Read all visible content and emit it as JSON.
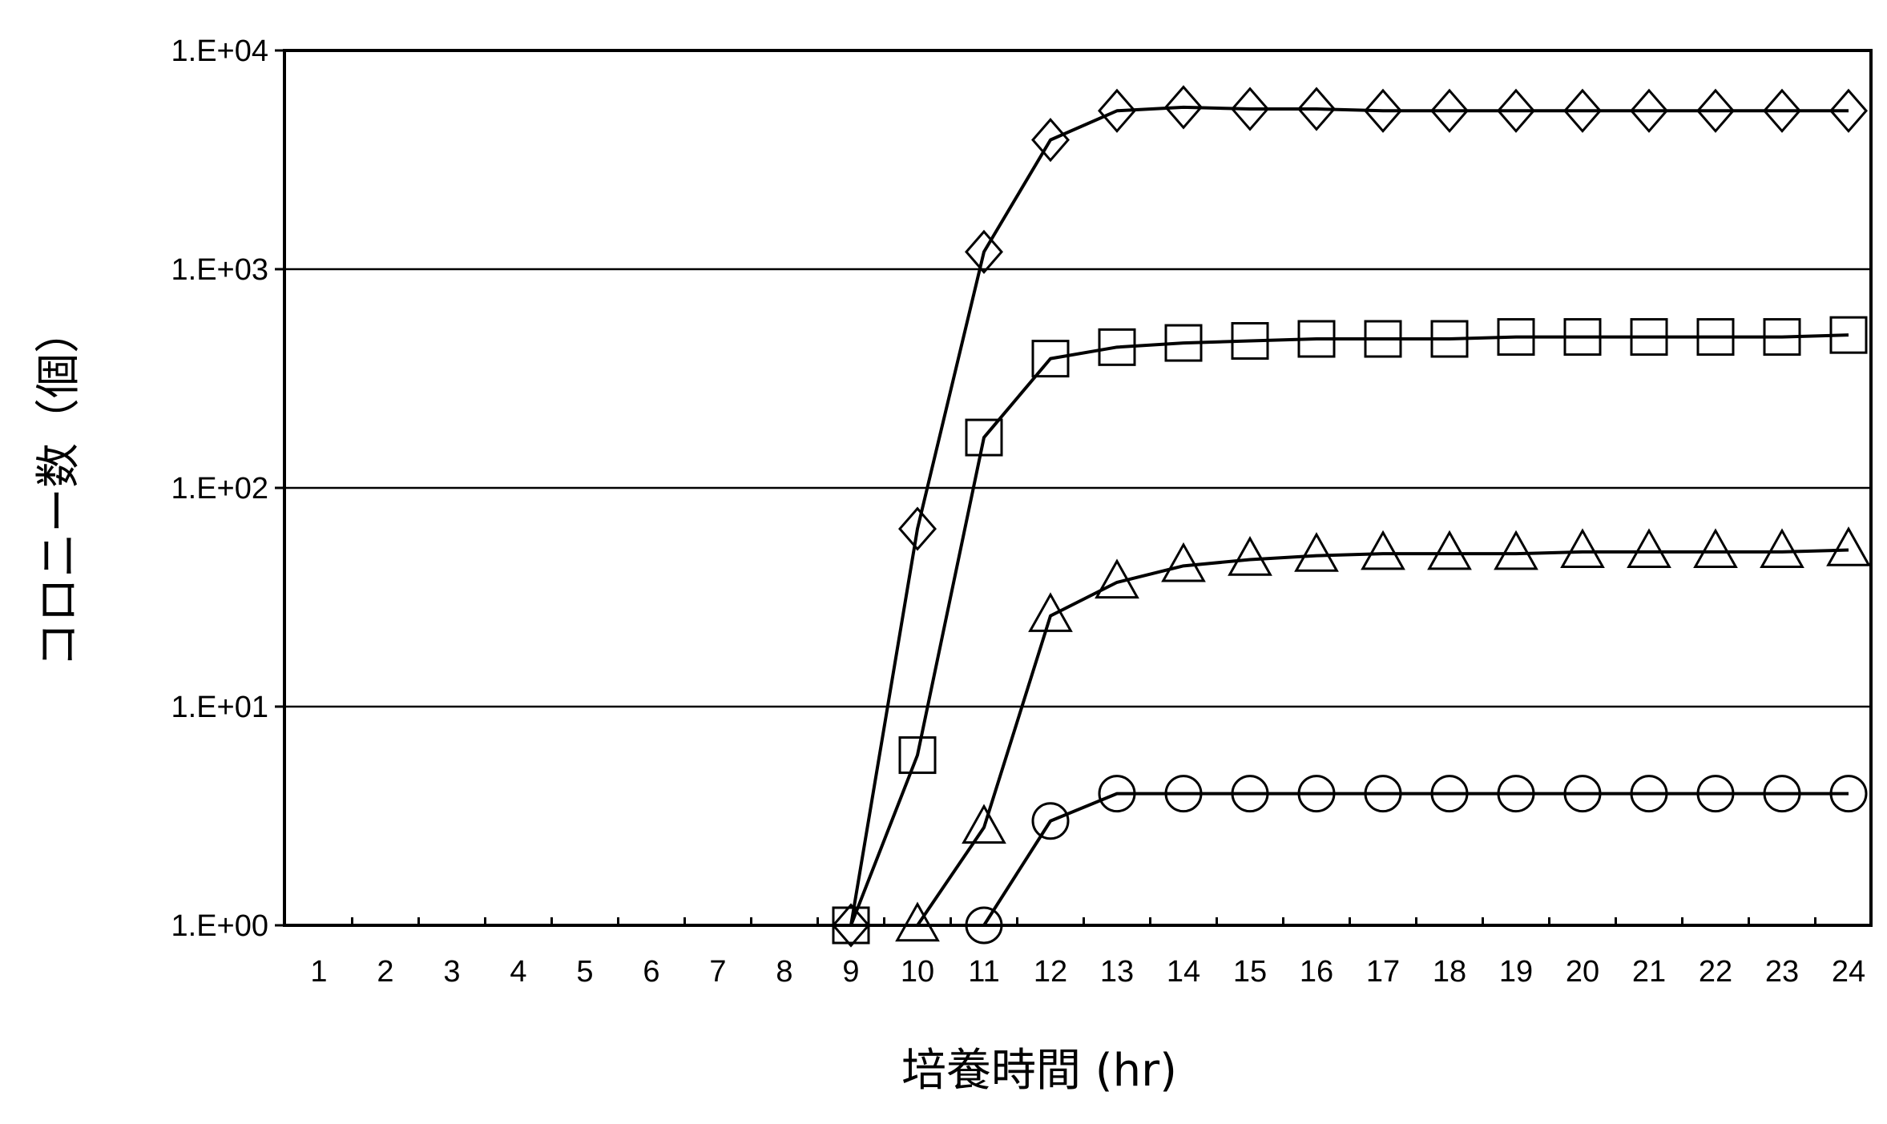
{
  "chart_data": {
    "type": "line",
    "xlabel": "培養時間 (hr)",
    "ylabel": "コロニー数（個）",
    "x_ticks": [
      "1",
      "2",
      "3",
      "4",
      "5",
      "6",
      "7",
      "8",
      "9",
      "10",
      "11",
      "12",
      "13",
      "14",
      "15",
      "16",
      "17",
      "18",
      "19",
      "20",
      "21",
      "22",
      "23",
      "24"
    ],
    "y_scale": "log",
    "ylim": [
      1,
      10000
    ],
    "y_ticks": [
      {
        "value": 1,
        "label": "1.E+00"
      },
      {
        "value": 10,
        "label": "1.E+01"
      },
      {
        "value": 100,
        "label": "1.E+02"
      },
      {
        "value": 1000,
        "label": "1.E+03"
      },
      {
        "value": 10000,
        "label": "1.E+04"
      }
    ],
    "grid": "horizontal",
    "series": [
      {
        "marker": "diamond",
        "x": [
          9,
          10,
          11,
          12,
          13,
          14,
          15,
          16,
          17,
          18,
          19,
          20,
          21,
          22,
          23,
          24
        ],
        "values": [
          1,
          65,
          1200,
          3900,
          5300,
          5500,
          5400,
          5400,
          5300,
          5300,
          5300,
          5300,
          5300,
          5300,
          5300,
          5300
        ]
      },
      {
        "marker": "square",
        "x": [
          9,
          10,
          11,
          12,
          13,
          14,
          15,
          16,
          17,
          18,
          19,
          20,
          21,
          22,
          23,
          24
        ],
        "values": [
          1,
          6,
          170,
          390,
          440,
          460,
          470,
          480,
          480,
          480,
          490,
          490,
          490,
          490,
          490,
          500
        ]
      },
      {
        "marker": "triangle",
        "x": [
          10,
          11,
          12,
          13,
          14,
          15,
          16,
          17,
          18,
          19,
          20,
          21,
          22,
          23,
          24
        ],
        "values": [
          1,
          2.8,
          26,
          37,
          44,
          47,
          49,
          50,
          50,
          50,
          51,
          51,
          51,
          51,
          52
        ]
      },
      {
        "marker": "circle",
        "x": [
          11,
          12,
          13,
          14,
          15,
          16,
          17,
          18,
          19,
          20,
          21,
          22,
          23,
          24
        ],
        "values": [
          1,
          3,
          4,
          4,
          4,
          4,
          4,
          4,
          4,
          4,
          4,
          4,
          4,
          4
        ]
      }
    ]
  }
}
